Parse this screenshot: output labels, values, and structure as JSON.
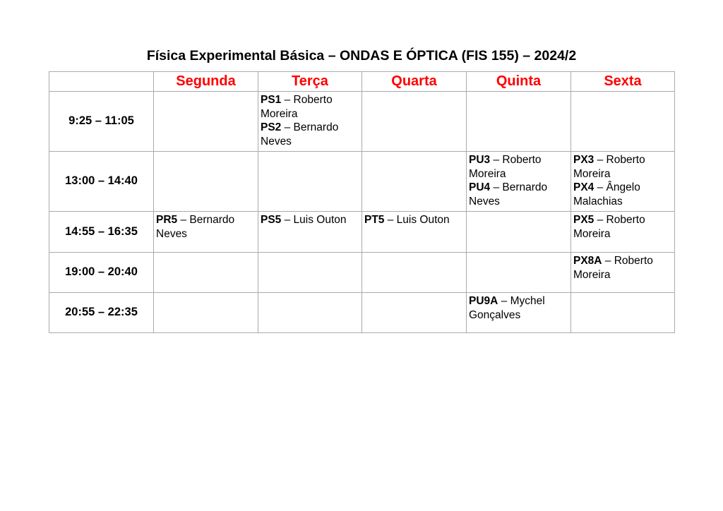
{
  "title": "Física Experimental Básica – ONDAS E ÓPTICA (FIS 155) – 2024/2",
  "days": [
    "Segunda",
    "Terça",
    "Quarta",
    "Quinta",
    "Sexta"
  ],
  "header_color": "#ff0000",
  "rows": [
    {
      "time": "9:25 – 11:05",
      "cells": [
        [],
        [
          {
            "code": "PS1",
            "name": " – Roberto Moreira"
          },
          {
            "code": "PS2",
            "name": " – Bernardo Neves"
          }
        ],
        [],
        [],
        []
      ]
    },
    {
      "time": "13:00 – 14:40",
      "cells": [
        [],
        [],
        [],
        [
          {
            "code": "PU3",
            "name": " – Roberto Moreira"
          },
          {
            "code": "PU4",
            "name": " – Bernardo Neves"
          }
        ],
        [
          {
            "code": "PX3",
            "name": " – Roberto Moreira"
          },
          {
            "code": "PX4",
            "name": " –  Ângelo Malachias"
          }
        ]
      ]
    },
    {
      "time": "14:55 – 16:35",
      "cells": [
        [
          {
            "code": "PR5",
            "name": " – Bernardo Neves"
          }
        ],
        [
          {
            "code": "PS5",
            "name": " – Luis Outon"
          }
        ],
        [
          {
            "code": "PT5",
            "name": " – Luis Outon"
          }
        ],
        [],
        [
          {
            "code": "PX5",
            "name": " – Roberto Moreira"
          }
        ]
      ]
    },
    {
      "time": "19:00 – 20:40",
      "cells": [
        [],
        [],
        [],
        [],
        [
          {
            "code": "PX8A",
            "name": " – Roberto Moreira"
          }
        ]
      ]
    },
    {
      "time": "20:55 – 22:35",
      "cells": [
        [],
        [],
        [],
        [
          {
            "code": "PU9A",
            "name": " –  Mychel Gonçalves"
          }
        ],
        []
      ]
    }
  ]
}
